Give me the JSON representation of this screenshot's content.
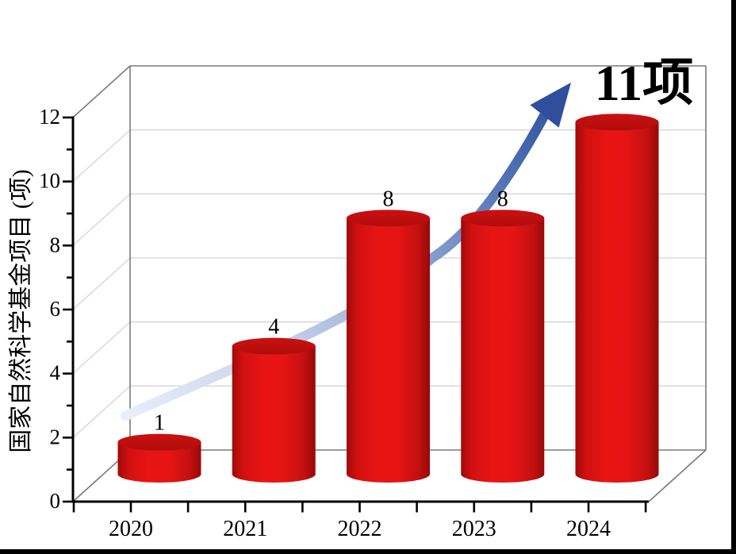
{
  "chart_data": {
    "type": "bar",
    "subtype": "3d-cylinder",
    "title": "",
    "xlabel": "",
    "ylabel": "国家自然科学基金项目 (项)",
    "categories": [
      "2020",
      "2021",
      "2022",
      "2023",
      "2024"
    ],
    "values": [
      1,
      4,
      8,
      8,
      11
    ],
    "value_labels": [
      "1",
      "4",
      "8",
      "8",
      ""
    ],
    "ytick_labels": [
      "0",
      "2",
      "4",
      "6",
      "8",
      "10",
      "12"
    ],
    "ylim": [
      0,
      12
    ],
    "grid": true,
    "legend": false,
    "trend_arrow": true,
    "annotation": "11项",
    "colors": {
      "bar": "#e81414",
      "bar_dark": "#a00a0a",
      "bar_top": "#c40f0f",
      "annotation_text": "#c20b0b",
      "arrow_start": "#eaeffa",
      "arrow_mid": "#8ea6d2",
      "arrow_end": "#31519e",
      "axis": "#000000",
      "gridline": "#d4d4d4",
      "frame": "#7a7a7a"
    }
  }
}
